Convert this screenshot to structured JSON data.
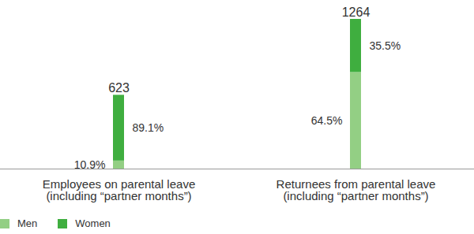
{
  "chart_data": {
    "type": "bar",
    "stacked": true,
    "data_labels": true,
    "tick_labels": "x",
    "legend": "bottom-left",
    "categories": [
      "Employees on parental leave\n(including “partner months”)",
      "Returnees from parental leave\n(including “partner months”)"
    ],
    "series": [
      {
        "name": "Men",
        "color": "#93cf84",
        "values": [
          10.9,
          64.5
        ],
        "value_labels": [
          "10.9%",
          "64.5%"
        ]
      },
      {
        "name": "Women",
        "color": "#3fae3f",
        "values": [
          89.1,
          35.5
        ],
        "value_labels": [
          "89.1%",
          "35.5%"
        ]
      }
    ],
    "totals": [
      623,
      1264
    ]
  }
}
